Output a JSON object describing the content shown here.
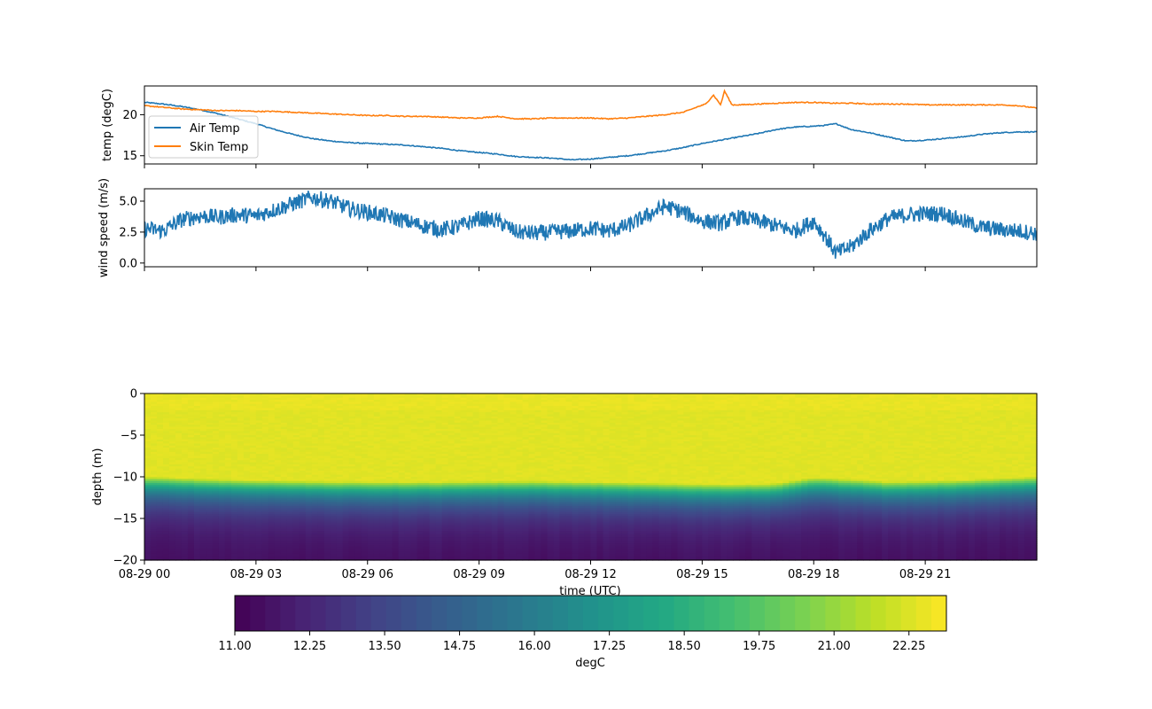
{
  "colors": {
    "air_temp": "#1f77b4",
    "skin_temp": "#ff7f0e",
    "wind": "#1f77b4",
    "colormap": "viridis"
  },
  "chart_data": [
    {
      "type": "line",
      "ylabel": "temp (degC)",
      "xlim": [
        0,
        24
      ],
      "ylim": [
        14,
        23.5
      ],
      "yticks": [
        15,
        20
      ],
      "ytick_labels": [
        "15",
        "20"
      ],
      "legend": "upper left",
      "grid": false,
      "series": [
        {
          "name": "Air Temp",
          "x": [
            0,
            0.5,
            1,
            1.5,
            2,
            2.5,
            3,
            3.5,
            4,
            4.5,
            5,
            5.5,
            6,
            6.5,
            7,
            7.5,
            8,
            8.5,
            9,
            9.5,
            10,
            10.5,
            11,
            11.5,
            12,
            12.5,
            13,
            13.5,
            14,
            14.5,
            15,
            15.5,
            16,
            16.5,
            17,
            17.5,
            18,
            18.3,
            18.6,
            19,
            19.5,
            20,
            20.5,
            21,
            21.5,
            22,
            22.5,
            23,
            23.5,
            24
          ],
          "y": [
            21.5,
            21.3,
            21.0,
            20.6,
            20.1,
            19.5,
            18.9,
            18.2,
            17.6,
            17.1,
            16.8,
            16.6,
            16.5,
            16.4,
            16.3,
            16.1,
            15.9,
            15.6,
            15.4,
            15.2,
            14.9,
            14.8,
            14.7,
            14.5,
            14.6,
            14.8,
            15.0,
            15.3,
            15.6,
            16.0,
            16.5,
            16.9,
            17.3,
            17.7,
            18.2,
            18.5,
            18.6,
            18.7,
            18.9,
            18.2,
            17.8,
            17.3,
            16.8,
            16.9,
            17.1,
            17.3,
            17.6,
            17.8,
            17.9,
            17.9
          ]
        },
        {
          "name": "Skin Temp",
          "x": [
            0,
            0.5,
            1,
            1.5,
            2,
            2.5,
            3,
            3.5,
            4,
            4.5,
            5,
            5.5,
            6,
            6.5,
            7,
            7.5,
            8,
            8.5,
            9,
            9.5,
            10,
            10.5,
            11,
            11.5,
            12,
            12.5,
            13,
            13.5,
            14,
            14.5,
            14.9,
            15.1,
            15.3,
            15.5,
            15.6,
            15.8,
            16,
            16.5,
            17,
            17.5,
            18,
            18.5,
            19,
            19.5,
            20,
            20.5,
            21,
            21.5,
            22,
            22.5,
            23,
            23.5,
            24
          ],
          "y": [
            21.1,
            20.9,
            20.7,
            20.6,
            20.5,
            20.5,
            20.4,
            20.4,
            20.3,
            20.2,
            20.1,
            20.0,
            19.9,
            19.9,
            19.8,
            19.8,
            19.7,
            19.6,
            19.6,
            19.8,
            19.5,
            19.5,
            19.6,
            19.6,
            19.6,
            19.5,
            19.6,
            19.8,
            20.0,
            20.3,
            21.0,
            21.3,
            22.4,
            21.2,
            22.9,
            21.2,
            21.2,
            21.3,
            21.4,
            21.5,
            21.5,
            21.4,
            21.4,
            21.3,
            21.3,
            21.3,
            21.2,
            21.2,
            21.2,
            21.2,
            21.2,
            21.1,
            20.8
          ]
        }
      ]
    },
    {
      "type": "line",
      "ylabel": "wind speed (m/s)",
      "xlim": [
        0,
        24
      ],
      "ylim": [
        -0.3,
        6.0
      ],
      "yticks": [
        0,
        2.5,
        5
      ],
      "ytick_labels": [
        "0.0",
        "2.5",
        "5.0"
      ],
      "grid": false,
      "series": [
        {
          "x": [
            0,
            0.5,
            1,
            1.5,
            2,
            2.5,
            3,
            3.5,
            4,
            4.5,
            5,
            5.5,
            6,
            6.5,
            7,
            7.5,
            8,
            8.5,
            9,
            9.5,
            10,
            10.5,
            11,
            11.5,
            12,
            12.5,
            13,
            13.5,
            14,
            14.5,
            15,
            15.5,
            16,
            16.5,
            17,
            17.5,
            18,
            18.3,
            18.6,
            19,
            19.5,
            20,
            20.5,
            21,
            21.5,
            22,
            22.5,
            23,
            23.5,
            24
          ],
          "y": [
            2.8,
            2.6,
            3.5,
            3.8,
            3.7,
            3.9,
            3.8,
            4.3,
            4.8,
            5.3,
            5.0,
            4.4,
            4.1,
            3.8,
            3.4,
            3.0,
            2.7,
            3.0,
            3.6,
            3.4,
            2.5,
            2.4,
            2.5,
            2.6,
            2.8,
            2.6,
            3.0,
            3.8,
            4.6,
            4.1,
            3.4,
            3.2,
            3.7,
            3.4,
            3.0,
            2.6,
            3.4,
            2.2,
            0.8,
            1.3,
            2.6,
            3.6,
            3.9,
            4.0,
            4.0,
            3.4,
            2.9,
            2.7,
            2.6,
            2.4
          ]
        }
      ]
    },
    {
      "type": "heatmap",
      "ylabel": "depth (m)",
      "xlabel": "time (UTC)",
      "xlim": [
        0,
        24
      ],
      "ylim": [
        -20,
        0
      ],
      "yticks": [
        0,
        -5,
        -10,
        -15,
        -20
      ],
      "ytick_labels": [
        "0",
        "−5",
        "−10",
        "−15",
        "−20"
      ],
      "xticks": [
        0,
        3,
        6,
        9,
        12,
        15,
        18,
        21
      ],
      "xtick_labels": [
        "08-29 00",
        "08-29 03",
        "08-29 06",
        "08-29 09",
        "08-29 12",
        "08-29 15",
        "08-29 18",
        "08-29 21"
      ],
      "thermocline_depth": {
        "x": [
          0,
          2,
          4,
          6,
          8,
          10,
          12,
          14,
          16,
          17,
          17.5,
          18,
          19,
          20,
          21,
          22,
          23,
          24
        ],
        "y": [
          -10.0,
          -10.3,
          -10.5,
          -10.6,
          -10.6,
          -10.5,
          -10.6,
          -10.8,
          -10.9,
          -10.8,
          -10.4,
          -10.1,
          -10.3,
          -10.6,
          -10.5,
          -10.4,
          -10.2,
          -10.0
        ]
      },
      "colorbar": {
        "label": "degC",
        "vmin": 11.0,
        "vmax": 22.875,
        "ticks": [
          "11.00",
          "12.25",
          "13.50",
          "14.75",
          "16.00",
          "17.25",
          "18.50",
          "19.75",
          "21.00",
          "22.25"
        ]
      }
    }
  ]
}
